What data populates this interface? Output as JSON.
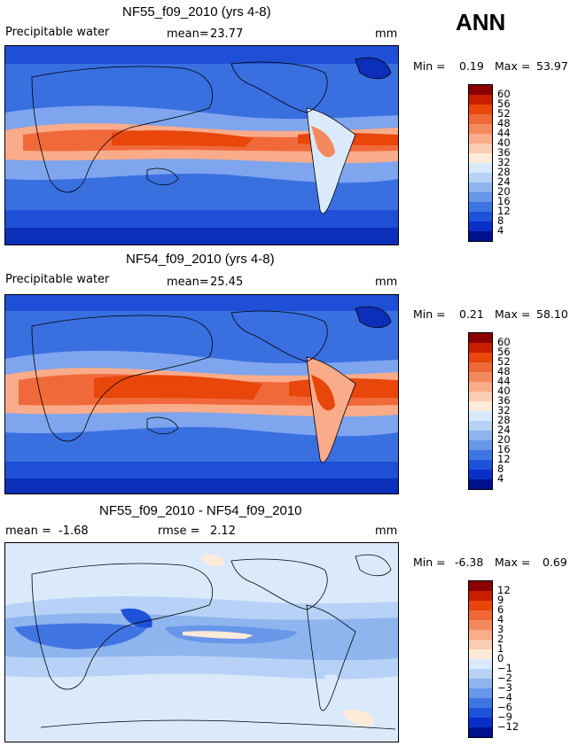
{
  "season": "ANN",
  "panels": [
    {
      "title": "NF55_f09_2010 (yrs 4-8)",
      "variable": "Precipitable water",
      "mean_label": "mean=",
      "mean_value": "23.77",
      "units": "mm",
      "min_label": "Min =",
      "min_value": "0.19",
      "max_label": "Max =",
      "max_value": "53.97",
      "colorbar_levels": [
        "60",
        "56",
        "52",
        "48",
        "44",
        "40",
        "36",
        "32",
        "28",
        "24",
        "20",
        "16",
        "12",
        "8",
        "4"
      ],
      "colorbar_colors": [
        "#8b0000",
        "#c81e00",
        "#e8460a",
        "#f0693a",
        "#f5895e",
        "#f9ab8a",
        "#fbcdb4",
        "#fdebd9",
        "#dbeafb",
        "#b7d2f6",
        "#8fb5ef",
        "#6896e8",
        "#4174e3",
        "#1f52d9",
        "#0a2fc9",
        "#00118f"
      ]
    },
    {
      "title": "NF54_f09_2010 (yrs 4-8)",
      "variable": "Precipitable water",
      "mean_label": "mean=",
      "mean_value": "25.45",
      "units": "mm",
      "min_label": "Min =",
      "min_value": "0.21",
      "max_label": "Max =",
      "max_value": "58.10",
      "colorbar_levels": [
        "60",
        "56",
        "52",
        "48",
        "44",
        "40",
        "36",
        "32",
        "28",
        "24",
        "20",
        "16",
        "12",
        "8",
        "4"
      ],
      "colorbar_colors": [
        "#8b0000",
        "#c81e00",
        "#e8460a",
        "#f0693a",
        "#f5895e",
        "#f9ab8a",
        "#fbcdb4",
        "#fdebd9",
        "#dbeafb",
        "#b7d2f6",
        "#8fb5ef",
        "#6896e8",
        "#4174e3",
        "#1f52d9",
        "#0a2fc9",
        "#00118f"
      ]
    },
    {
      "title": "NF55_f09_2010 - NF54_f09_2010",
      "mean_label": "mean =",
      "mean_value": "-1.68",
      "rmse_label": "rmse =",
      "rmse_value": "2.12",
      "units": "mm",
      "min_label": "Min =",
      "min_value": "-6.38",
      "max_label": "Max =",
      "max_value": "0.69",
      "colorbar_levels": [
        "12",
        "9",
        "6",
        "4",
        "3",
        "2",
        "1",
        "0",
        "−1",
        "−2",
        "−3",
        "−4",
        "−6",
        "−9",
        "−12"
      ],
      "colorbar_colors": [
        "#8b0000",
        "#c81e00",
        "#e8460a",
        "#f0693a",
        "#f5895e",
        "#f9ab8a",
        "#fbcdb4",
        "#fdebd9",
        "#dbeafb",
        "#b7d2f6",
        "#8fb5ef",
        "#6896e8",
        "#4174e3",
        "#1f52d9",
        "#0a2fc9",
        "#00118f"
      ]
    }
  ]
}
